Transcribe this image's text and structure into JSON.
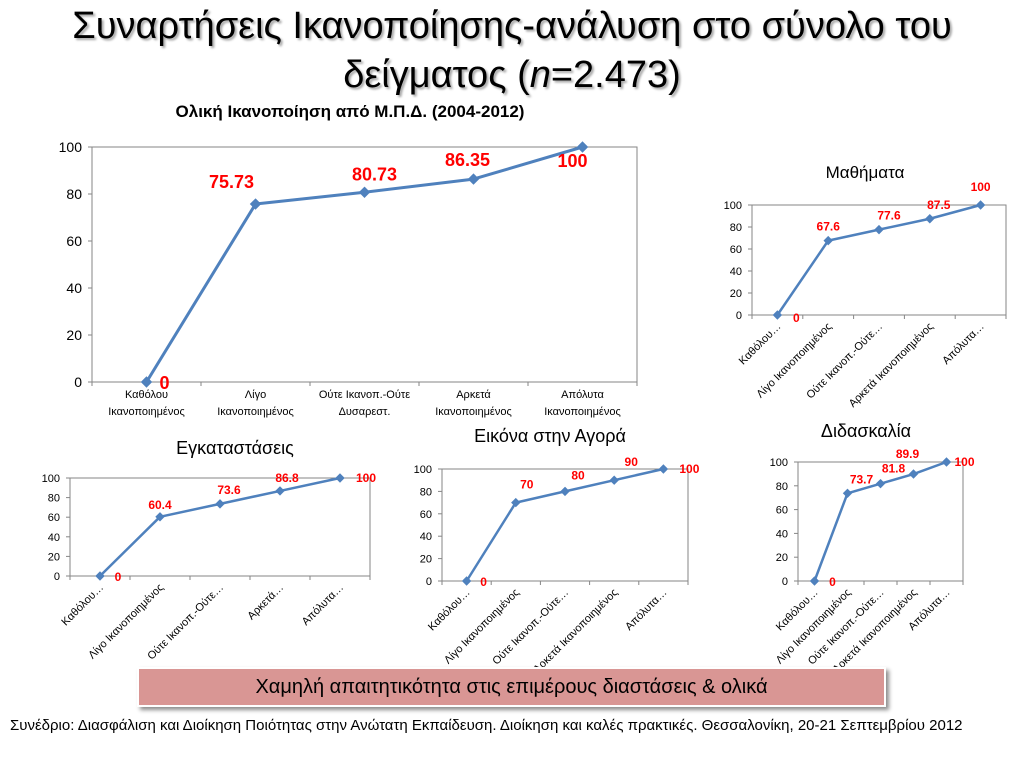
{
  "slide": {
    "title_line1": "Συναρτήσεις Ικανοποίησης-ανάλυση στο σύνολο του",
    "title_line2_pre": "δείγματος (",
    "title_line2_n": "n",
    "title_line2_post": "=2.473)",
    "banner_text": "Χαμηλή απαιτητικότητα στις επιμέρους διαστάσεις & ολικά",
    "footer_text": "Συνέδριο: Διασφάλιση και Διοίκηση Ποιότητας στην Ανώτατη Εκπαίδευση. Διοίκηση και καλές πρακτικές. Θεσσαλονίκη, 20-21 Σεπτεμβρίου 2012"
  },
  "colors": {
    "line": "#4f81bd",
    "marker": "#4f81bd",
    "data_label": "#ff0000",
    "grid": "#d9d9d9",
    "axis": "#868686",
    "banner": "#d99694"
  },
  "chart_data": [
    {
      "type": "line",
      "title": "Ολική Ικανοποίηση από Μ.Π.Δ. (2004-2012)",
      "categories": [
        "Καθόλου Ικανοποιημένος",
        "Λίγο Ικανοποιημένος",
        "Ούτε Ικανοπ.-Ούτε Δυσαρεστ.",
        "Αρκετά Ικανοποιημένος",
        "Απόλυτα Ικανοποιημένος"
      ],
      "category_labels": [
        [
          "Καθόλου",
          "Ικανοποιημένος"
        ],
        [
          "Λίγο",
          "Ικανοποιημένος"
        ],
        [
          "Ούτε Ικανοπ.-Ούτε",
          "Δυσαρεστ."
        ],
        [
          "Αρκετά",
          "Ικανοποιημένος"
        ],
        [
          "Απόλυτα",
          "Ικανοποιημένος"
        ]
      ],
      "values": [
        0,
        75.73,
        80.73,
        86.35,
        100
      ],
      "data_labels": [
        "0",
        "75.73",
        "80.73",
        "86.35",
        "100"
      ],
      "ylim": [
        0,
        100
      ],
      "yticks": [
        "0",
        "20",
        "40",
        "60",
        "80",
        "100"
      ],
      "grid": false,
      "legend": "none"
    },
    {
      "type": "line",
      "title": "Μαθήματα",
      "categories": [
        "Καθόλου…",
        "Λίγο Ικανοποιημένος",
        "Ούτε Ικανοπ.-Ούτε…",
        "Αρκετά Ικανοποιημένος",
        "Απόλυτα…"
      ],
      "values": [
        0,
        67.6,
        77.6,
        87.5,
        100
      ],
      "data_labels": [
        "0",
        "67.6",
        "77.6",
        "87.5",
        "100"
      ],
      "ylim": [
        0,
        100
      ],
      "yticks": [
        "0",
        "20",
        "40",
        "60",
        "80",
        "100"
      ],
      "grid": false,
      "legend": "none"
    },
    {
      "type": "line",
      "title": "Εγκαταστάσεις",
      "categories": [
        "Καθόλου…",
        "Λίγο Ικανοποιημένος",
        "Ούτε Ικανοπ.-Ούτε…",
        "Αρκετά…",
        "Απόλυτα…"
      ],
      "values": [
        0,
        60.4,
        73.6,
        86.8,
        100
      ],
      "data_labels": [
        "0",
        "60.4",
        "73.6",
        "86.8",
        "100"
      ],
      "ylim": [
        0,
        100
      ],
      "yticks": [
        "0",
        "20",
        "40",
        "60",
        "80",
        "100"
      ],
      "grid": false,
      "legend": "none"
    },
    {
      "type": "line",
      "title": "Εικόνα στην Αγορά",
      "categories": [
        "Καθόλου…",
        "Λίγο Ικανοποιημένος",
        "Ούτε Ικανοπ.-Ούτε…",
        "Αρκετά Ικανοποιημένος",
        "Απόλυτα…"
      ],
      "values": [
        0,
        70,
        80,
        90,
        100
      ],
      "data_labels": [
        "0",
        "70",
        "80",
        "90",
        "100"
      ],
      "ylim": [
        0,
        100
      ],
      "yticks": [
        "0",
        "20",
        "40",
        "60",
        "80",
        "100"
      ],
      "grid": false,
      "legend": "none"
    },
    {
      "type": "line",
      "title": "Διδασκαλία",
      "categories": [
        "Καθόλου…",
        "Λίγο Ικανοποιημένος",
        "Ούτε Ικανοπ.-Ούτε…",
        "Αρκετά Ικανοποιημένος",
        "Απόλυτα…"
      ],
      "values": [
        0,
        73.7,
        81.8,
        89.9,
        100
      ],
      "data_labels": [
        "0",
        "73.7",
        "81.8",
        "89.9",
        "100"
      ],
      "ylim": [
        0,
        100
      ],
      "yticks": [
        "0",
        "20",
        "40",
        "60",
        "80",
        "100"
      ],
      "grid": false,
      "legend": "none"
    }
  ]
}
